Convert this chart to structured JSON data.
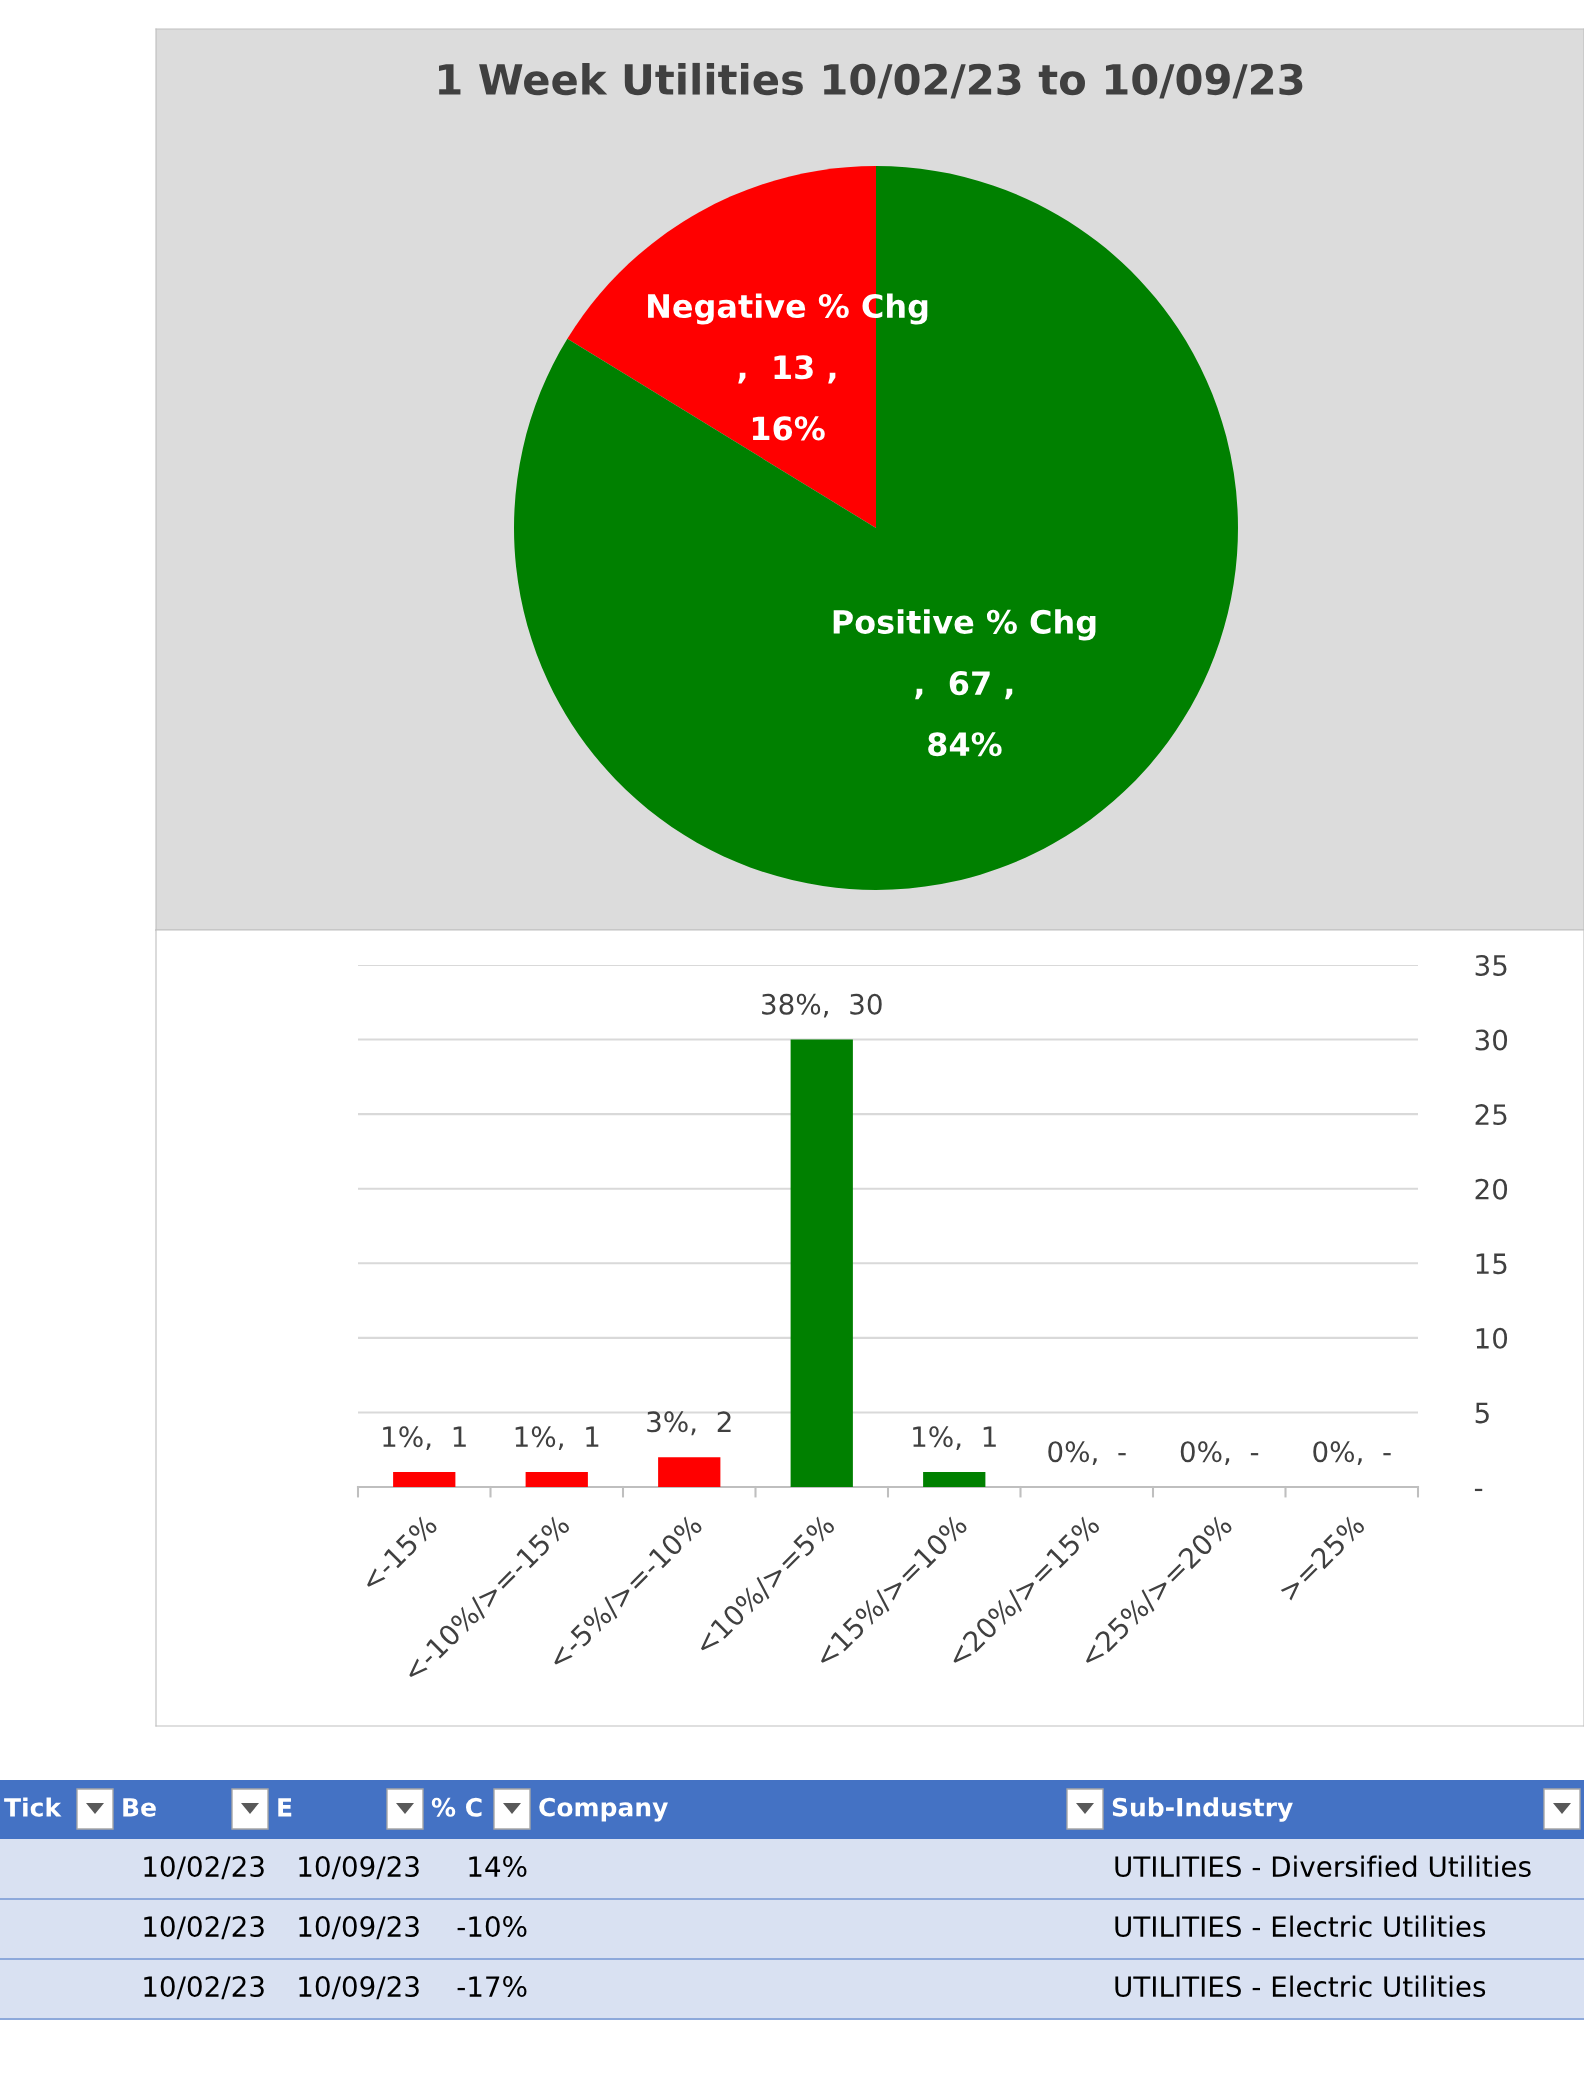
{
  "chart_data": [
    {
      "type": "pie",
      "title": "1 Week Utilities 10/02/23 to 10/09/23",
      "categories": [
        "Negative % Chg",
        "Positive % Chg"
      ],
      "values": [
        13,
        67
      ],
      "colors": [
        "#ff0000",
        "#008000"
      ],
      "value_labels": [
        ",  13 ,",
        ",  67 ,"
      ],
      "annotations": [
        "16%",
        "84%"
      ],
      "legend": false
    },
    {
      "type": "bar",
      "categories": [
        "<-15%",
        "<-10%/>=-15%",
        "<-5%/>=-10%",
        "<10%/>=5%",
        "<15%/>=10%",
        "<20%/>=15%",
        "<25%/>=20%",
        ">=25%"
      ],
      "values": [
        1,
        1,
        2,
        30,
        1,
        0,
        0,
        0
      ],
      "colors": [
        "#ff0000",
        "#ff0000",
        "#ff0000",
        "#008000",
        "#008000",
        "#008000",
        "#008000",
        "#008000"
      ],
      "value_labels": [
        "1%,  1",
        "1%,  1",
        "3%,  2",
        "38%,  30",
        "1%,  1",
        "0%,  -",
        "0%,  -",
        "0%,  -"
      ],
      "ylim": [
        0,
        35
      ],
      "yticks": [
        {
          "value": 0,
          "label": "-"
        },
        5,
        10,
        15,
        20,
        25,
        30,
        35
      ],
      "grid": "y",
      "legend": false
    },
    {
      "type": "other",
      "categories": [
        "Tick",
        "Be",
        "E",
        "% C",
        "Company",
        "Sub-Industry"
      ],
      "cell_labels": [
        [
          null,
          "10/02/23",
          "10/09/23",
          "14%",
          null,
          "UTILITIES - Diversified Utilities"
        ],
        [
          null,
          "10/02/23",
          "10/09/23",
          "-10%",
          null,
          "UTILITIES - Electric Utilities"
        ],
        [
          null,
          "10/02/23",
          "10/09/23",
          "-17%",
          null,
          "UTILITIES - Electric Utilities"
        ]
      ]
    }
  ]
}
